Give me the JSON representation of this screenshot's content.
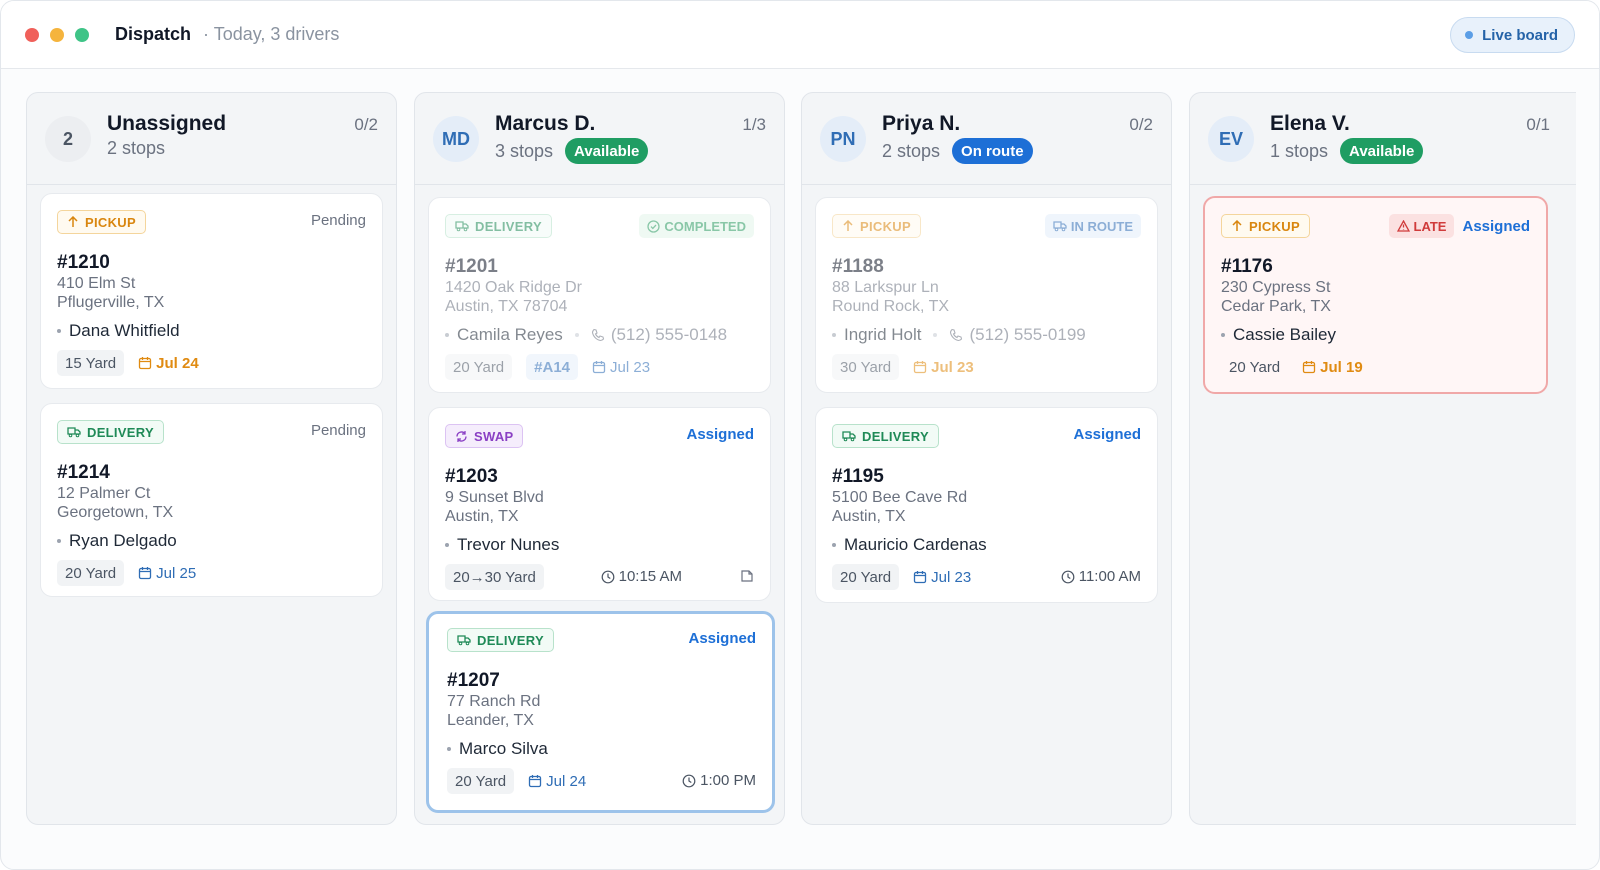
{
  "header": {
    "title": "Dispatch",
    "subtitle": "· Today, 3 drivers",
    "live_board": "Live board",
    "window_dots": [
      "#f0605a",
      "#f5b43d",
      "#3fc487"
    ]
  },
  "columns": [
    {
      "avatar": "2",
      "name": "Unassigned",
      "stops": "2 stops",
      "ratio": "0/2",
      "cards": [
        {
          "type": "PICKUP",
          "status": "Pending",
          "id": "#1210",
          "addr1": "410 Elm St",
          "addr2": "Pflugerville, TX",
          "person": "Dana Whitfield",
          "size": "15 Yard",
          "date": "Jul 24"
        },
        {
          "type": "DELIVERY",
          "status": "Pending",
          "id": "#1214",
          "addr1": "12 Palmer Ct",
          "addr2": "Georgetown, TX",
          "person": "Ryan Delgado",
          "size": "20 Yard",
          "date": "Jul 25"
        }
      ]
    },
    {
      "avatar": "MD",
      "name": "Marcus D.",
      "stops": "3 stops",
      "status_pill": "Available",
      "ratio": "1/3",
      "cards": [
        {
          "type": "DELIVERY",
          "status": "COMPLETED",
          "id": "#1201",
          "addr1": "1420 Oak Ridge Dr",
          "addr2": "Austin, TX 78704",
          "person": "Camila Reyes",
          "phone": "(512) 555-0148",
          "size": "20 Yard",
          "truck": "#A14",
          "date": "Jul 23"
        },
        {
          "type": "SWAP",
          "status": "Assigned",
          "id": "#1203",
          "addr1": "9 Sunset Blvd",
          "addr2": "Austin, TX",
          "person": "Trevor Nunes",
          "size": "20→30 Yard",
          "time": "10:15 AM"
        },
        {
          "type": "DELIVERY",
          "status": "Assigned",
          "id": "#1207",
          "addr1": "77 Ranch Rd",
          "addr2": "Leander, TX",
          "person": "Marco Silva",
          "size": "20 Yard",
          "date": "Jul 24",
          "time": "1:00 PM"
        }
      ]
    },
    {
      "avatar": "PN",
      "name": "Priya N.",
      "stops": "2 stops",
      "status_pill": "On route",
      "ratio": "0/2",
      "cards": [
        {
          "type": "PICKUP",
          "status": "IN ROUTE",
          "id": "#1188",
          "addr1": "88 Larkspur Ln",
          "addr2": "Round Rock, TX",
          "person": "Ingrid Holt",
          "phone": "(512) 555-0199",
          "size": "30 Yard",
          "date": "Jul 23"
        },
        {
          "type": "DELIVERY",
          "status": "Assigned",
          "id": "#1195",
          "addr1": "5100 Bee Cave Rd",
          "addr2": "Austin, TX",
          "person": "Mauricio Cardenas",
          "size": "20 Yard",
          "date": "Jul 23",
          "time": "11:00 AM"
        }
      ]
    },
    {
      "avatar": "EV",
      "name": "Elena V.",
      "stops": "1 stops",
      "status_pill": "Available",
      "ratio": "0/1",
      "cards": [
        {
          "type": "PICKUP",
          "late": "LATE",
          "status": "Assigned",
          "id": "#1176",
          "addr1": "230 Cypress St",
          "addr2": "Cedar Park, TX",
          "person": "Cassie Bailey",
          "size": "20 Yard",
          "date": "Jul 19"
        }
      ]
    }
  ]
}
